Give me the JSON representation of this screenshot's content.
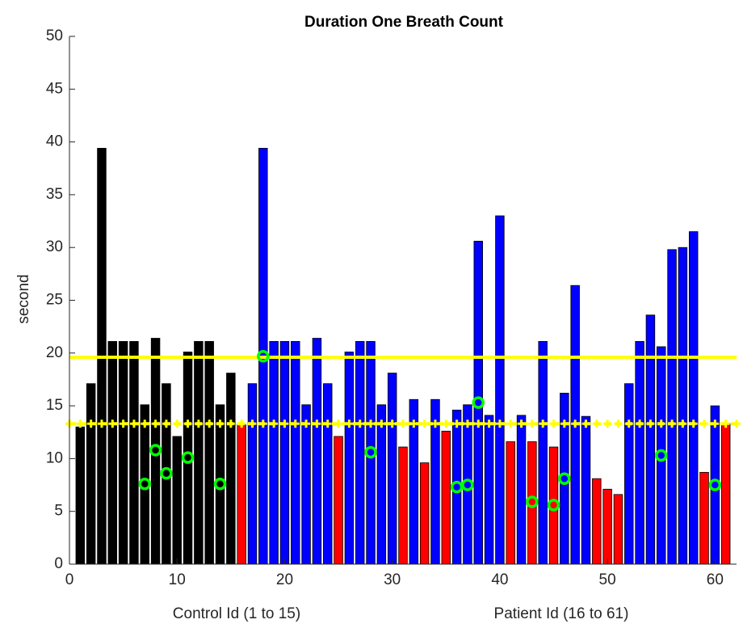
{
  "chart_data": {
    "type": "bar",
    "title": "Duration One Breath Count",
    "ylabel": "second",
    "xlabels": [
      "Control Id (1 to 15)",
      "Patient Id (16 to 61)"
    ],
    "x": [
      1,
      2,
      3,
      4,
      5,
      6,
      7,
      8,
      9,
      10,
      11,
      12,
      13,
      14,
      15,
      16,
      17,
      18,
      19,
      20,
      21,
      22,
      23,
      24,
      25,
      26,
      27,
      28,
      29,
      30,
      31,
      32,
      33,
      34,
      35,
      36,
      37,
      38,
      39,
      40,
      41,
      42,
      43,
      44,
      45,
      46,
      47,
      48,
      49,
      50,
      51,
      52,
      53,
      54,
      55,
      56,
      57,
      58,
      59,
      60,
      61
    ],
    "values": [
      13,
      17.1,
      39.4,
      21.1,
      21.1,
      21.1,
      15.1,
      21.4,
      17.1,
      12.1,
      20.1,
      21.1,
      21.1,
      15.1,
      18.1,
      13.2,
      17.1,
      39.4,
      21.1,
      21.1,
      21.1,
      15.1,
      21.4,
      17.1,
      12.1,
      20.1,
      21.1,
      21.1,
      15.1,
      18.1,
      11.1,
      15.6,
      9.6,
      15.6,
      12.6,
      14.6,
      15.1,
      30.6,
      14.1,
      33.0,
      11.6,
      14.1,
      11.6,
      21.1,
      11.1,
      16.2,
      26.4,
      14.0,
      8.1,
      7.1,
      6.6,
      17.1,
      21.1,
      23.6,
      20.6,
      29.8,
      30.0,
      31.5,
      8.7,
      15.0,
      13.3
    ],
    "colors": [
      "#000000",
      "#000000",
      "#000000",
      "#000000",
      "#000000",
      "#000000",
      "#000000",
      "#000000",
      "#000000",
      "#000000",
      "#000000",
      "#000000",
      "#000000",
      "#000000",
      "#000000",
      "#ff0000",
      "#0000ff",
      "#0000ff",
      "#0000ff",
      "#0000ff",
      "#0000ff",
      "#0000ff",
      "#0000ff",
      "#0000ff",
      "#ff0000",
      "#0000ff",
      "#0000ff",
      "#0000ff",
      "#0000ff",
      "#0000ff",
      "#ff0000",
      "#0000ff",
      "#ff0000",
      "#0000ff",
      "#ff0000",
      "#0000ff",
      "#0000ff",
      "#0000ff",
      "#0000ff",
      "#0000ff",
      "#ff0000",
      "#0000ff",
      "#ff0000",
      "#0000ff",
      "#ff0000",
      "#0000ff",
      "#0000ff",
      "#0000ff",
      "#ff0000",
      "#ff0000",
      "#ff0000",
      "#0000ff",
      "#0000ff",
      "#0000ff",
      "#0000ff",
      "#0000ff",
      "#0000ff",
      "#0000ff",
      "#ff0000",
      "#0000ff",
      "#ff0000"
    ],
    "markers": {
      "color": "#00ff00",
      "x": [
        7,
        8,
        9,
        11,
        14,
        18,
        28,
        36,
        37,
        38,
        43,
        45,
        46,
        55,
        60
      ],
      "y": [
        7.6,
        10.8,
        8.6,
        10.1,
        7.6,
        19.7,
        10.6,
        7.3,
        7.5,
        15.3,
        5.9,
        5.6,
        8.1,
        10.3,
        7.5
      ]
    },
    "hlines": [
      {
        "value": 19.6,
        "color": "#ffff00",
        "style": "solid"
      },
      {
        "value": 13.3,
        "color": "#ffff00",
        "style": "dashed",
        "marker": "+"
      }
    ],
    "xlim": [
      0,
      62
    ],
    "ylim": [
      0,
      50
    ],
    "xticks": [
      0,
      10,
      20,
      30,
      40,
      50,
      60
    ],
    "yticks": [
      0,
      5,
      10,
      15,
      20,
      25,
      30,
      35,
      40,
      45,
      50
    ]
  }
}
